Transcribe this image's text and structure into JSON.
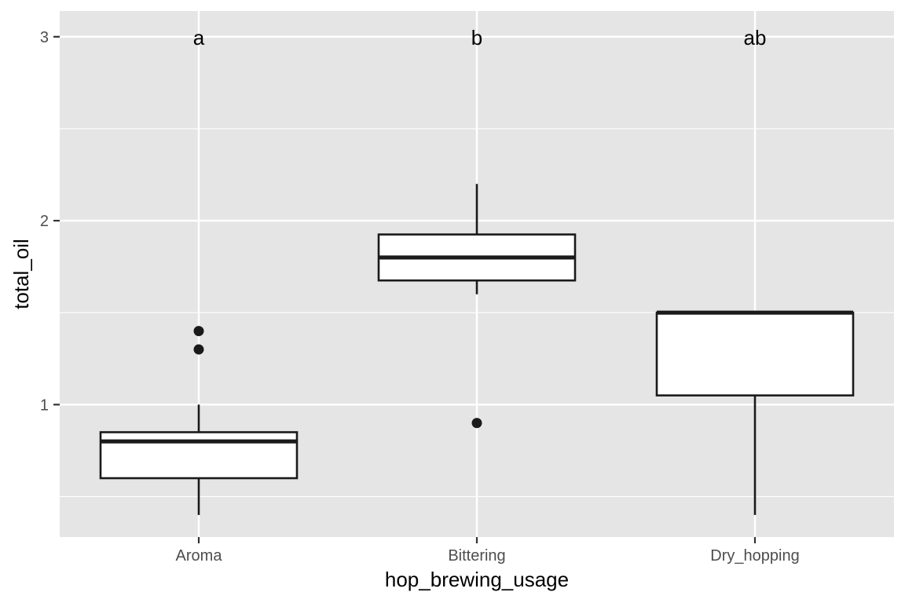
{
  "chart_data": {
    "type": "boxplot",
    "xlabel": "hop_brewing_usage",
    "ylabel": "total_oil",
    "ylim": [
      0.28,
      3.14
    ],
    "yticks": [
      1,
      2,
      3
    ],
    "grid": true,
    "background": "#e5e5e5",
    "grid_color": "#ffffff",
    "box_fill": "#ffffff",
    "box_stroke": "#1a1a1a",
    "categories": [
      "Aroma",
      "Bittering",
      "Dry_hopping"
    ],
    "boxes": [
      {
        "category": "Aroma",
        "whisker_low": 0.4,
        "q1": 0.6,
        "median": 0.8,
        "q3": 0.85,
        "whisker_high": 1.0,
        "outliers": [
          1.3,
          1.4
        ],
        "letter": "a"
      },
      {
        "category": "Bittering",
        "whisker_low": 1.6,
        "q1": 1.675,
        "median": 1.8,
        "q3": 1.925,
        "whisker_high": 2.2,
        "outliers": [
          0.9
        ],
        "letter": "b"
      },
      {
        "category": "Dry_hopping",
        "whisker_low": 0.4,
        "q1": 1.05,
        "median": 1.5,
        "q3": 1.5,
        "whisker_high": 1.5,
        "outliers": [],
        "letter": "ab"
      }
    ],
    "letter_y": 3
  }
}
